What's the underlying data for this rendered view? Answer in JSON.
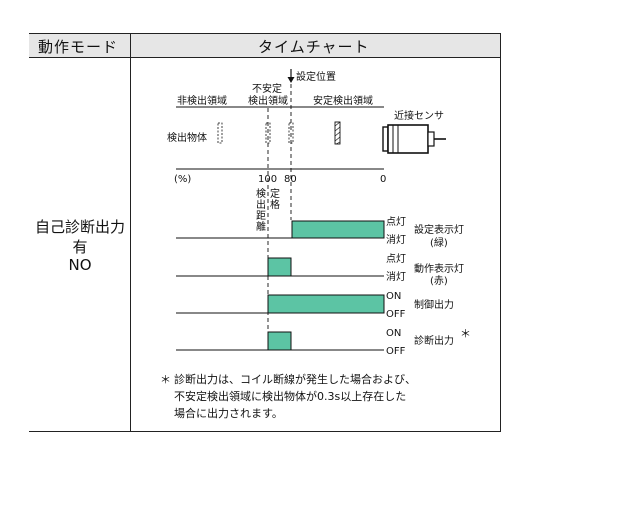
{
  "table": {
    "header_mode": "動作モード",
    "header_chart": "タイムチャート",
    "mode_line1": "自己診断出力",
    "mode_line2": "有",
    "mode_line3": "NO"
  },
  "chart": {
    "setting_position": "設定位置",
    "region_nondetect": "非検出領域",
    "region_unstable_1": "不安定",
    "region_unstable_2": "検出領域",
    "region_stable": "安定検出領域",
    "proximity_sensor": "近接センサ",
    "detected_object": "検出物体",
    "percent_unit": "(%)",
    "tick_100": "100",
    "tick_80": "80",
    "tick_0": "0",
    "vlabel_detect_distance": [
      "検",
      "出",
      "距",
      "離"
    ],
    "vlabel_rated": [
      "定",
      "格"
    ],
    "rows": [
      {
        "high_state": "点灯",
        "low_state": "消灯",
        "name_1": "設定表示灯",
        "name_2": "(緑)"
      },
      {
        "high_state": "点灯",
        "low_state": "消灯",
        "name_1": "動作表示灯",
        "name_2": "(赤)"
      },
      {
        "high_state": "ON",
        "low_state": "OFF",
        "name_1": "制御出力",
        "name_2": ""
      },
      {
        "high_state": "ON",
        "low_state": "OFF",
        "name_1": "診断出力",
        "name_2": ""
      }
    ],
    "footnote_mark": "＊",
    "footnote_line1": "診断出力は、コイル断線が発生した場合および、",
    "footnote_line2": "不安定検出領域に検出物体が0.3s以上存在した",
    "footnote_line3": "場合に出力されます。"
  },
  "colors": {
    "fill": "#5cc4a4",
    "header_bg": "#e6e6e6",
    "line": "#222222"
  }
}
